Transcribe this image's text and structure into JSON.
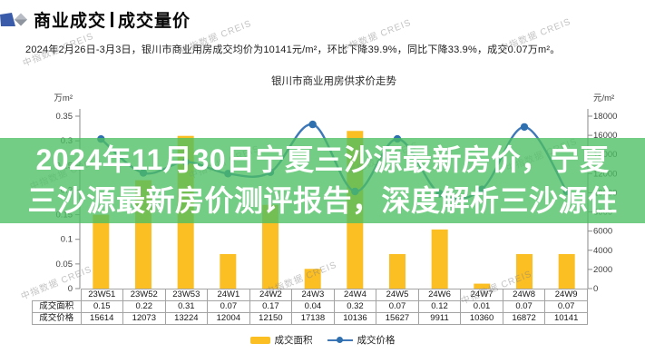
{
  "header": {
    "title_left": "商业成交",
    "title_right": "成交量价",
    "logo_blue": "#3a5ba9",
    "logo_gray_light": "#b7bcc4",
    "logo_gray_dark": "#8f959e"
  },
  "subtitle": "2024年2月26日-3月3日，银川市商业用房成交均价为10141元/m²，环比下降39.9%，同比下降33.9%，成交0.07万m²。",
  "overlay": {
    "line1": "2024年11月30日宁夏三沙源最新房价，宁夏",
    "line2": "三沙源最新房价测评报告，深度解析三沙源住",
    "background_color": "rgba(77,191,99,0.78)",
    "text_color": "#ffffff"
  },
  "watermark": {
    "text": "中指数据 CREIS"
  },
  "chart_data": {
    "type": "bar",
    "title": "银川市商业用房供求价走势",
    "categories": [
      "23W51",
      "23W52",
      "23W53",
      "24W1",
      "24W2",
      "24W3",
      "24W4",
      "24W5",
      "24W6",
      "24W7",
      "24W8",
      "24W9"
    ],
    "series": [
      {
        "name": "成交面积",
        "type": "bar",
        "axis": "left",
        "color": "#FBBE23",
        "values": [
          0.15,
          0.22,
          0.31,
          0.07,
          0.17,
          0.04,
          0.32,
          0.07,
          0.12,
          0.01,
          0.07,
          0.07
        ]
      },
      {
        "name": "成交价格",
        "type": "line",
        "axis": "right",
        "color": "#3E78B8",
        "marker_color": "#2E6FB0",
        "values": [
          15614,
          12073,
          13224,
          12004,
          12150,
          17138,
          10136,
          15627,
          9911,
          10360,
          16872,
          10141
        ]
      }
    ],
    "left_axis": {
      "label": "万m²",
      "min": 0,
      "max": 0.35,
      "step": 0.05
    },
    "right_axis": {
      "label": "元/m²",
      "min": 0,
      "max": 18000,
      "step": 2000
    },
    "legend_position": "bottom",
    "grid": false,
    "table_rows": [
      {
        "label": "成交面积",
        "values": [
          "0.15",
          "0.22",
          "0.31",
          "0.07",
          "0.17",
          "0.04",
          "0.32",
          "0.07",
          "0.12",
          "0.01",
          "0.07",
          "0.07"
        ]
      },
      {
        "label": "成交价格",
        "values": [
          "15614",
          "12073",
          "13224",
          "12004",
          "12150",
          "17138",
          "10136",
          "15627",
          "9911",
          "10360",
          "16872",
          "10141"
        ]
      }
    ]
  }
}
